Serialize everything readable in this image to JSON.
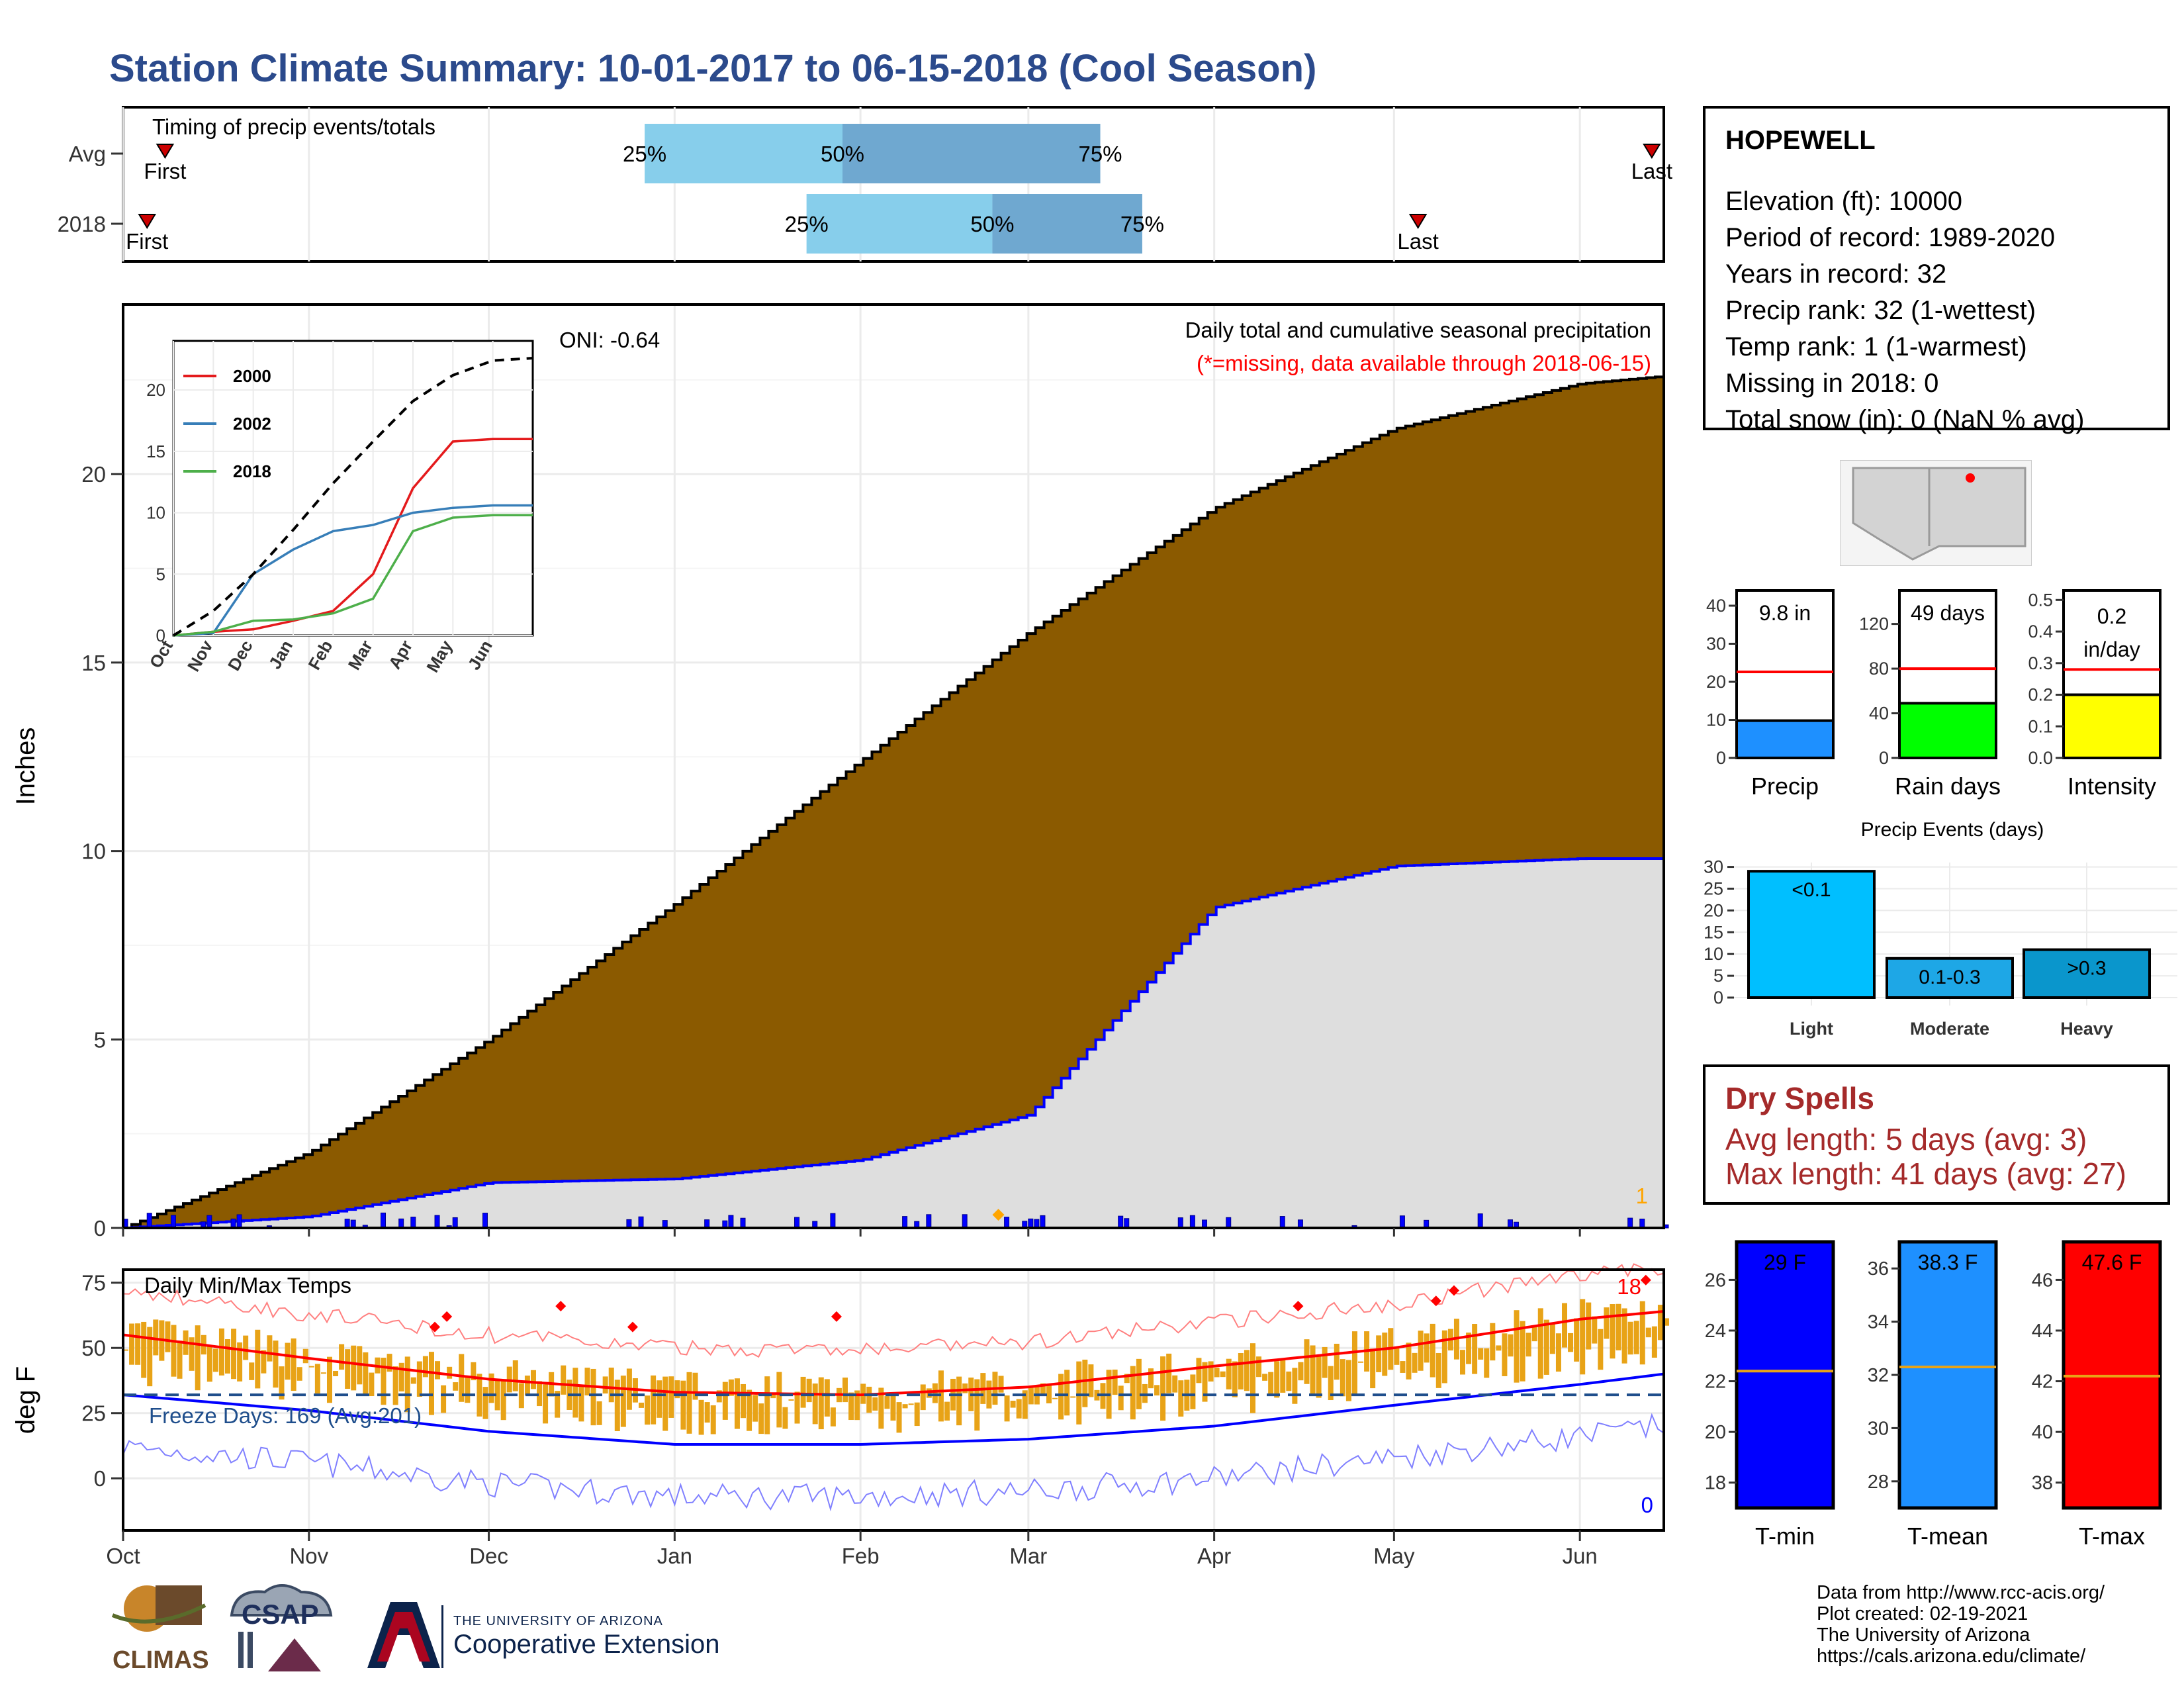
{
  "title": "Station Climate Summary: 10-01-2017 to 06-15-2018 (Cool Season)",
  "colors": {
    "title": "#2b4a8c",
    "brown": "#8b5a00",
    "grey_fill": "#dedede",
    "blue_line": "#0000ff",
    "light_blue": "#87ceeb",
    "mid_blue": "#6fa8d0",
    "red": "#ff0000",
    "orange": "#e8a317",
    "precip_bar": "#1e90ff",
    "raindays_bar": "#00ff00",
    "intensity_bar": "#ffff00",
    "events_bar": "#00bfff",
    "tmin_bar": "#0000ff",
    "tmean_bar": "#1e90ff",
    "tmax_bar": "#ff0000",
    "dry_text": "#a52a2a"
  },
  "timing": {
    "label": "Timing of precip events/totals",
    "rows": [
      {
        "name": "Avg",
        "first": "First",
        "last": "Last",
        "p25": "25%",
        "p50": "50%",
        "p75": "75%",
        "first_date": "2017-10-08",
        "d25": "2017-12-27",
        "d50": "2018-01-29",
        "d75": "2018-03-13",
        "last_date": "2018-06-13"
      },
      {
        "name": "2018",
        "first": "First",
        "last": "Last",
        "p25": "25%",
        "p50": "50%",
        "p75": "75%",
        "first_date": "2017-10-05",
        "d25": "2018-01-23",
        "d50": "2018-02-23",
        "d75": "2018-03-20",
        "last_date": "2018-05-05"
      }
    ]
  },
  "precip_panel": {
    "ylabel": "Inches",
    "oni": "ONI: -0.64",
    "caption": "Daily total and cumulative seasonal precipitation",
    "missing_note": "(*=missing, data available through 2018-06-15)",
    "missing_count": "1",
    "yticks": [
      "0",
      "5",
      "10",
      "15",
      "20"
    ]
  },
  "inset": {
    "legend": [
      "2000",
      "2002",
      "2018"
    ],
    "yticks": [
      "0",
      "5",
      "10",
      "15",
      "20"
    ],
    "xticks": [
      "Oct",
      "Nov",
      "Dec",
      "Jan",
      "Feb",
      "Mar",
      "Apr",
      "May",
      "Jun"
    ]
  },
  "temp_panel": {
    "ylabel": "deg F",
    "label": "Daily Min/Max Temps",
    "freeze": "Freeze Days: 169 (Avg:201)",
    "hot_count": "18",
    "cold_count": "0",
    "yticks": [
      "0",
      "25",
      "50",
      "75"
    ]
  },
  "month_ticks": [
    "Oct",
    "Nov",
    "Dec",
    "Jan",
    "Feb",
    "Mar",
    "Apr",
    "May",
    "Jun"
  ],
  "station": {
    "name": "HOPEWELL",
    "elevation": "Elevation (ft): 10000",
    "period": "Period of record: 1989-2020",
    "years": "Years in record: 32",
    "precip_rank": "Precip rank: 32 (1-wettest)",
    "temp_rank": "Temp rank: 1 (1-warmest)",
    "missing": "Missing in 2018: 0",
    "snow": "Total snow (in): 0 (NaN % avg)"
  },
  "mini_bars": [
    {
      "label": "Precip",
      "value_text": "9.8 in",
      "yticks": [
        "0",
        "10",
        "20",
        "30",
        "40"
      ]
    },
    {
      "label": "Rain days",
      "value_text": "49 days",
      "yticks": [
        "0",
        "40",
        "80",
        "120"
      ]
    },
    {
      "label": "Intensity",
      "value_text": "0.2 in/day",
      "yticks": [
        "0.0",
        "0.1",
        "0.2",
        "0.3",
        "0.4",
        "0.5"
      ]
    }
  ],
  "events": {
    "title": "Precip Events (days)",
    "yticks": [
      "0",
      "5",
      "10",
      "15",
      "20",
      "25",
      "30"
    ],
    "bars": [
      {
        "label": "Light",
        "text": "<0.1"
      },
      {
        "label": "Moderate",
        "text": "0.1-0.3"
      },
      {
        "label": "Heavy",
        "text": ">0.3"
      }
    ]
  },
  "dry_spells": {
    "title": "Dry Spells",
    "avg": "Avg length: 5 days (avg: 3)",
    "max": "Max length: 41 days (avg: 27)"
  },
  "temp_bars": [
    {
      "label": "T-min",
      "value_text": "29 F",
      "yticks": [
        "18",
        "20",
        "22",
        "24",
        "26"
      ]
    },
    {
      "label": "T-mean",
      "value_text": "38.3 F",
      "yticks": [
        "28",
        "30",
        "32",
        "34",
        "36"
      ]
    },
    {
      "label": "T-max",
      "value_text": "47.6 F",
      "yticks": [
        "38",
        "40",
        "42",
        "44",
        "46"
      ]
    }
  ],
  "logos": {
    "climas": "CLIMAS",
    "csap": "CSAP",
    "ua_small": "THE UNIVERSITY OF ARIZONA",
    "ua_big": "Cooperative Extension"
  },
  "credits": [
    "Data from http://www.rcc-acis.org/",
    "Plot created: 02-19-2021",
    "The University of Arizona",
    "https://cals.arizona.edu/climate/"
  ],
  "chart_data": [
    {
      "type": "area",
      "title": "Daily total and cumulative seasonal precipitation",
      "ylabel": "Inches",
      "ylim": [
        0,
        24.5
      ],
      "x": [
        "2017-10-01",
        "2017-11-01",
        "2017-12-01",
        "2018-01-01",
        "2018-02-01",
        "2018-03-01",
        "2018-04-01",
        "2018-05-01",
        "2018-06-01",
        "2018-06-15"
      ],
      "series": [
        {
          "name": "Avg",
          "values": [
            0,
            2.0,
            5.0,
            8.6,
            12.4,
            15.8,
            19.1,
            21.2,
            22.4,
            22.6
          ]
        },
        {
          "name": "2018",
          "values": [
            0,
            0.3,
            1.2,
            1.3,
            1.8,
            3.0,
            8.5,
            9.6,
            9.8,
            9.8
          ]
        }
      ]
    },
    {
      "type": "line",
      "legend": [
        "2000",
        "2002",
        "2018"
      ],
      "ylim": [
        0,
        24
      ],
      "x": [
        "Oct",
        "Nov",
        "Dec",
        "Jan",
        "Feb",
        "Mar",
        "Apr",
        "May",
        "Jun",
        "Jun15"
      ],
      "series": [
        {
          "name": "2000",
          "values": [
            0,
            0.3,
            0.5,
            1.2,
            2.0,
            5.0,
            12.0,
            15.8,
            16.0,
            16.0
          ]
        },
        {
          "name": "2002",
          "values": [
            0,
            0.2,
            5.0,
            7.0,
            8.5,
            9.0,
            10.0,
            10.4,
            10.6,
            10.6
          ]
        },
        {
          "name": "2018",
          "values": [
            0,
            0.3,
            1.2,
            1.3,
            1.8,
            3.0,
            8.5,
            9.6,
            9.8,
            9.8
          ]
        },
        {
          "name": "Avg",
          "values": [
            0,
            2.0,
            5.0,
            8.6,
            12.4,
            15.8,
            19.1,
            21.2,
            22.4,
            22.6
          ]
        }
      ]
    },
    {
      "type": "line",
      "title": "Daily Min/Max Temps",
      "ylabel": "deg F",
      "ylim": [
        -20,
        80
      ],
      "x": [
        "2017-10-01",
        "2017-11-01",
        "2017-12-01",
        "2018-01-01",
        "2018-02-01",
        "2018-03-01",
        "2018-04-01",
        "2018-05-01",
        "2018-06-01",
        "2018-06-15"
      ],
      "series": [
        {
          "name": "Avg max",
          "values": [
            55,
            46,
            38,
            33,
            32,
            35,
            43,
            50,
            61,
            64
          ]
        },
        {
          "name": "Avg min",
          "values": [
            32,
            26,
            18,
            13,
            13,
            15,
            20,
            28,
            36,
            40
          ]
        },
        {
          "name": "Freeze line",
          "values": [
            32,
            32,
            32,
            32,
            32,
            32,
            32,
            32,
            32,
            32
          ]
        }
      ]
    },
    {
      "type": "bar",
      "categories": [
        "Precip",
        "Rain days",
        "Intensity"
      ],
      "series": [
        {
          "name": "2018",
          "values": [
            9.8,
            49,
            0.2
          ]
        },
        {
          "name": "Avg",
          "values": [
            22.6,
            80,
            0.28
          ]
        }
      ]
    },
    {
      "type": "bar",
      "title": "Precip Events (days)",
      "categories": [
        "Light",
        "Moderate",
        "Heavy"
      ],
      "values": [
        29,
        9,
        11
      ],
      "ylim": [
        0,
        30
      ]
    },
    {
      "type": "bar",
      "categories": [
        "T-min",
        "T-mean",
        "T-max"
      ],
      "series": [
        {
          "name": "2018",
          "values": [
            29,
            38.3,
            47.6
          ]
        },
        {
          "name": "Avg",
          "values": [
            22.4,
            32.3,
            42.2
          ]
        }
      ]
    }
  ]
}
